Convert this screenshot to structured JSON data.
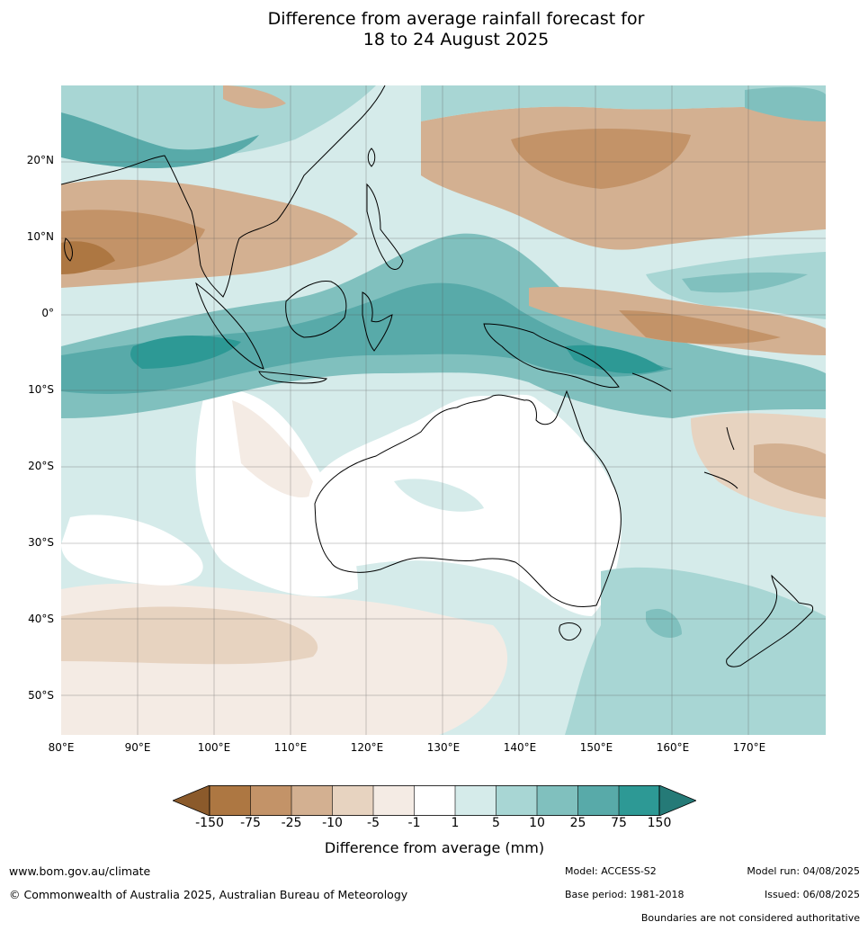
{
  "title": {
    "line1": "Difference from average rainfall forecast for",
    "line2": "18 to 24 August 2025"
  },
  "axes": {
    "lat_labels": [
      "20°N",
      "10°N",
      "0°",
      "10°S",
      "20°S",
      "30°S",
      "40°S",
      "50°S"
    ],
    "lat_values": [
      20,
      10,
      0,
      -10,
      -20,
      -30,
      -40,
      -50
    ],
    "lon_labels": [
      "80°E",
      "90°E",
      "100°E",
      "110°E",
      "120°E",
      "130°E",
      "140°E",
      "150°E",
      "160°E",
      "170°E"
    ],
    "lon_values": [
      80,
      90,
      100,
      110,
      120,
      130,
      140,
      150,
      160,
      170
    ]
  },
  "colorbar": {
    "title": "Difference from average (mm)",
    "tick_labels": [
      "-150",
      "-75",
      "-25",
      "-10",
      "-5",
      "-1",
      "1",
      "5",
      "10",
      "25",
      "75",
      "150"
    ],
    "colors": [
      "#8b5a2b",
      "#ad7742",
      "#c39368",
      "#d3b091",
      "#e7d3c0",
      "#f4ebe4",
      "#ffffff",
      "#d5ebea",
      "#a8d6d4",
      "#80c0be",
      "#58aaa9",
      "#2d9995",
      "#257a77"
    ]
  },
  "footer": {
    "website": "www.bom.gov.au/climate",
    "copyright": "© Commonwealth of Australia 2025, Australian Bureau of Meteorology",
    "model": "Model: ACCESS-S2",
    "base_period": "Base period: 1981-2018",
    "model_run": "Model run: 04/08/2025",
    "issued": "Issued: 06/08/2025",
    "disclaimer": "Boundaries are not considered authoritative"
  }
}
